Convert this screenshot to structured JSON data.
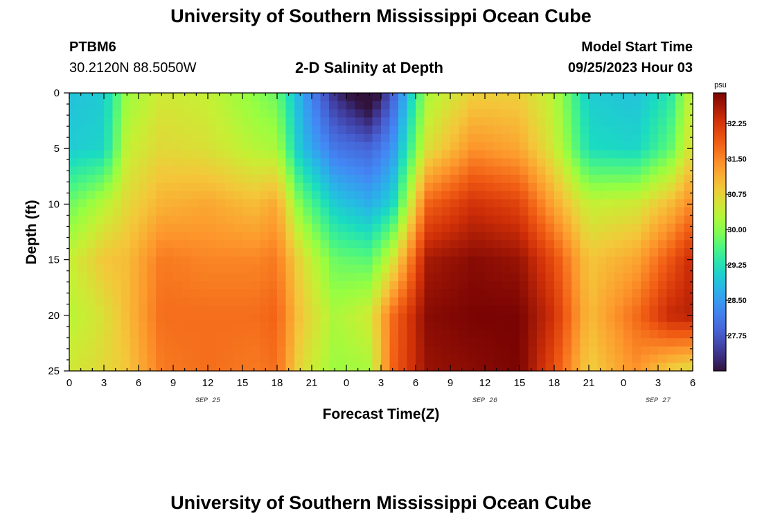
{
  "header": {
    "title": "University of Southern Mississippi Ocean Cube",
    "station_id": "PTBM6",
    "station_coords": "30.2120N  88.5050W",
    "chart_title": "2-D Salinity at Depth",
    "model_start_label": "Model Start Time",
    "model_start_value": "09/25/2023 Hour 03"
  },
  "footer": {
    "title": "University of Southern Mississippi Ocean Cube"
  },
  "chart_data": {
    "type": "heatmap",
    "title": "2-D Salinity at Depth",
    "xlabel": "Forecast Time(Z)",
    "ylabel": "Depth (ft)",
    "x_tick_labels": [
      "0",
      "3",
      "6",
      "9",
      "12",
      "15",
      "18",
      "21",
      "0",
      "3",
      "6",
      "9",
      "12",
      "15",
      "18",
      "21",
      "0",
      "3",
      "6"
    ],
    "x_range_hours": [
      0,
      54
    ],
    "date_labels": [
      {
        "text": "SEP 25",
        "hour": 12
      },
      {
        "text": "SEP 26",
        "hour": 36
      },
      {
        "text": "SEP 27",
        "hour": 51
      }
    ],
    "y_ticks": [
      0,
      5,
      10,
      15,
      20,
      25
    ],
    "ylim": [
      0,
      25
    ],
    "y_inverted": true,
    "colorbar": {
      "unit": "psu",
      "ticks": [
        "32.25",
        "31.50",
        "30.75",
        "30.00",
        "29.25",
        "28.50",
        "27.75"
      ],
      "range": [
        27.0,
        32.9
      ],
      "colormap": "turbo"
    },
    "grid": false,
    "legend": "right colorbar",
    "depth_profile_ft": [
      0,
      5,
      10,
      15,
      20,
      25
    ],
    "salinity_columns": [
      {
        "hour": 0,
        "values": [
          28.9,
          29.0,
          29.8,
          30.4,
          30.3,
          30.5
        ]
      },
      {
        "hour": 3,
        "values": [
          29.0,
          29.1,
          30.3,
          30.9,
          30.6,
          30.7
        ]
      },
      {
        "hour": 5,
        "values": [
          30.1,
          30.4,
          30.7,
          31.0,
          31.0,
          30.9
        ]
      },
      {
        "hour": 8,
        "values": [
          30.5,
          30.7,
          31.1,
          31.6,
          31.7,
          31.6
        ]
      },
      {
        "hour": 12,
        "values": [
          30.4,
          30.6,
          31.2,
          31.5,
          31.7,
          31.7
        ]
      },
      {
        "hour": 16,
        "values": [
          30.0,
          30.3,
          31.0,
          31.5,
          31.7,
          31.6
        ]
      },
      {
        "hour": 18,
        "values": [
          29.8,
          30.2,
          31.2,
          31.6,
          31.8,
          31.7
        ]
      },
      {
        "hour": 20,
        "values": [
          28.7,
          28.9,
          29.9,
          30.7,
          30.9,
          30.7
        ]
      },
      {
        "hour": 23,
        "values": [
          27.3,
          28.1,
          29.0,
          29.8,
          30.2,
          30.1
        ]
      },
      {
        "hour": 26,
        "values": [
          26.6,
          27.9,
          28.7,
          29.7,
          30.5,
          30.2
        ]
      },
      {
        "hour": 28,
        "values": [
          27.8,
          28.4,
          29.1,
          30.5,
          31.7,
          31.8
        ]
      },
      {
        "hour": 31,
        "values": [
          30.2,
          30.6,
          31.8,
          32.6,
          32.8,
          32.7
        ]
      },
      {
        "hour": 35,
        "values": [
          30.8,
          31.4,
          32.3,
          32.8,
          32.9,
          32.8
        ]
      },
      {
        "hour": 39,
        "values": [
          30.8,
          31.2,
          32.1,
          32.7,
          32.9,
          32.9
        ]
      },
      {
        "hour": 42,
        "values": [
          30.3,
          30.5,
          31.2,
          32.0,
          32.3,
          32.0
        ]
      },
      {
        "hour": 45,
        "values": [
          29.0,
          29.2,
          30.4,
          30.9,
          31.0,
          30.8
        ]
      },
      {
        "hour": 49,
        "values": [
          28.9,
          29.1,
          30.5,
          31.2,
          31.7,
          31.4
        ]
      },
      {
        "hour": 52,
        "values": [
          29.3,
          29.7,
          31.0,
          31.9,
          32.4,
          30.8
        ]
      },
      {
        "hour": 54,
        "values": [
          30.5,
          30.7,
          31.5,
          32.4,
          32.5,
          30.6
        ]
      }
    ]
  }
}
